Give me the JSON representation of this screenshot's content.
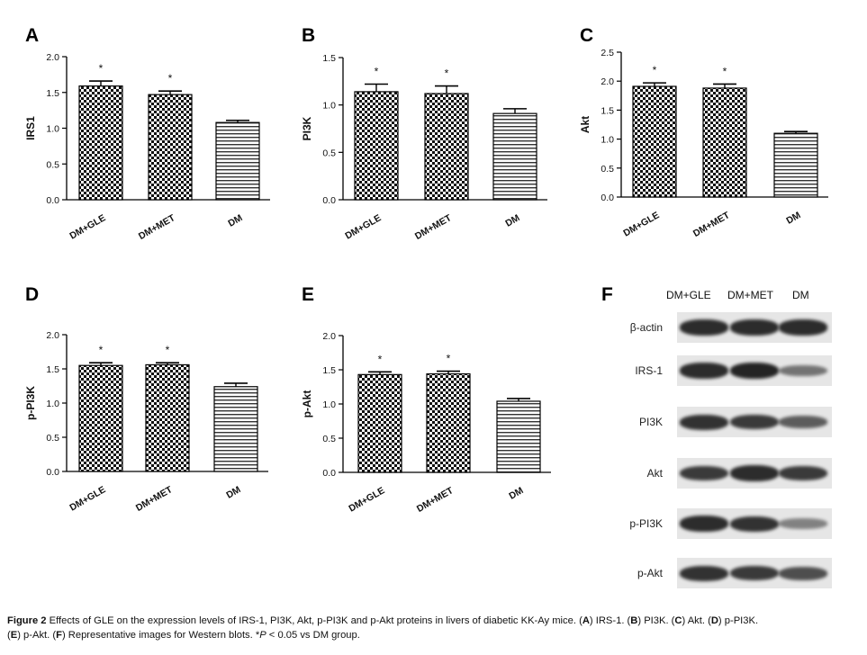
{
  "chart_data": [
    {
      "panel": "A",
      "type": "bar",
      "categories": [
        "DM+GLE",
        "DM+MET",
        "DM"
      ],
      "values": [
        1.59,
        1.47,
        1.08
      ],
      "errors": [
        0.07,
        0.05,
        0.03
      ],
      "significance": [
        "*",
        "*",
        ""
      ],
      "ylabel": "IRS1",
      "ylim": [
        0,
        2.0
      ],
      "yticks": [
        "0.0",
        "0.5",
        "1.0",
        "1.5",
        "2.0"
      ]
    },
    {
      "panel": "B",
      "type": "bar",
      "categories": [
        "DM+GLE",
        "DM+MET",
        "DM"
      ],
      "values": [
        1.14,
        1.12,
        0.91
      ],
      "errors": [
        0.08,
        0.08,
        0.05
      ],
      "significance": [
        "*",
        "*",
        ""
      ],
      "ylabel": "PI3K",
      "ylim": [
        0,
        1.5
      ],
      "yticks": [
        "0.0",
        "0.5",
        "1.0",
        "1.5"
      ]
    },
    {
      "panel": "C",
      "type": "bar",
      "categories": [
        "DM+GLE",
        "DM+MET",
        "DM"
      ],
      "values": [
        1.91,
        1.88,
        1.1
      ],
      "errors": [
        0.06,
        0.07,
        0.03
      ],
      "significance": [
        "*",
        "*",
        ""
      ],
      "ylabel": "Akt",
      "ylim": [
        0,
        2.5
      ],
      "yticks": [
        "0.0",
        "0.5",
        "1.0",
        "1.5",
        "2.0",
        "2.5"
      ]
    },
    {
      "panel": "D",
      "type": "bar",
      "categories": [
        "DM+GLE",
        "DM+MET",
        "DM"
      ],
      "values": [
        1.55,
        1.56,
        1.24
      ],
      "errors": [
        0.04,
        0.03,
        0.05
      ],
      "significance": [
        "*",
        "*",
        ""
      ],
      "ylabel": "p-PI3K",
      "ylim": [
        0,
        2.0
      ],
      "yticks": [
        "0.0",
        "0.5",
        "1.0",
        "1.5",
        "2.0"
      ]
    },
    {
      "panel": "E",
      "type": "bar",
      "categories": [
        "DM+GLE",
        "DM+MET",
        "DM"
      ],
      "values": [
        1.43,
        1.44,
        1.04
      ],
      "errors": [
        0.04,
        0.04,
        0.04
      ],
      "significance": [
        "*",
        "*",
        ""
      ],
      "ylabel": "p-Akt",
      "ylim": [
        0,
        2.0
      ],
      "yticks": [
        "0.0",
        "0.5",
        "1.0",
        "1.5",
        "2.0"
      ]
    }
  ],
  "blot": {
    "panel": "F",
    "lanes": [
      "DM+GLE",
      "DM+MET",
      "DM"
    ],
    "rows": [
      {
        "label": "β-actin",
        "intensity": [
          0.95,
          0.95,
          0.95
        ]
      },
      {
        "label": "IRS-1",
        "intensity": [
          0.95,
          1.0,
          0.45
        ]
      },
      {
        "label": "PI3K",
        "intensity": [
          0.9,
          0.85,
          0.6
        ]
      },
      {
        "label": "Akt",
        "intensity": [
          0.85,
          0.95,
          0.85
        ]
      },
      {
        "label": "p-PI3K",
        "intensity": [
          0.95,
          0.9,
          0.35
        ]
      },
      {
        "label": "p-Akt",
        "intensity": [
          0.9,
          0.85,
          0.7
        ]
      }
    ]
  },
  "caption": {
    "figure_label": "Figure 2",
    "p1": " Effects of GLE on the expression levels of IRS-1, PI3K, Akt, p-PI3K and p-Akt proteins in livers of diabetic KK-Ay mice. (",
    "lA": "A",
    "p2": ") IRS-1. (",
    "lB": "B",
    "p3": ") PI3K. (",
    "lC": "C",
    "p4": ") Akt. (",
    "lD": "D",
    "p5": ") p-PI3K.",
    "p6": "(",
    "lE": "E",
    "p7": ") p-Akt. (",
    "lF": "F",
    "p8": ") Representative images for Western blots. *",
    "pItalic": "P",
    "p9": " < 0.05 vs DM group."
  },
  "colors": {
    "bar_stroke": "#000000",
    "axis": "#000000",
    "band": "#1a1a1a",
    "blot_bg": "#e6e6e6"
  }
}
